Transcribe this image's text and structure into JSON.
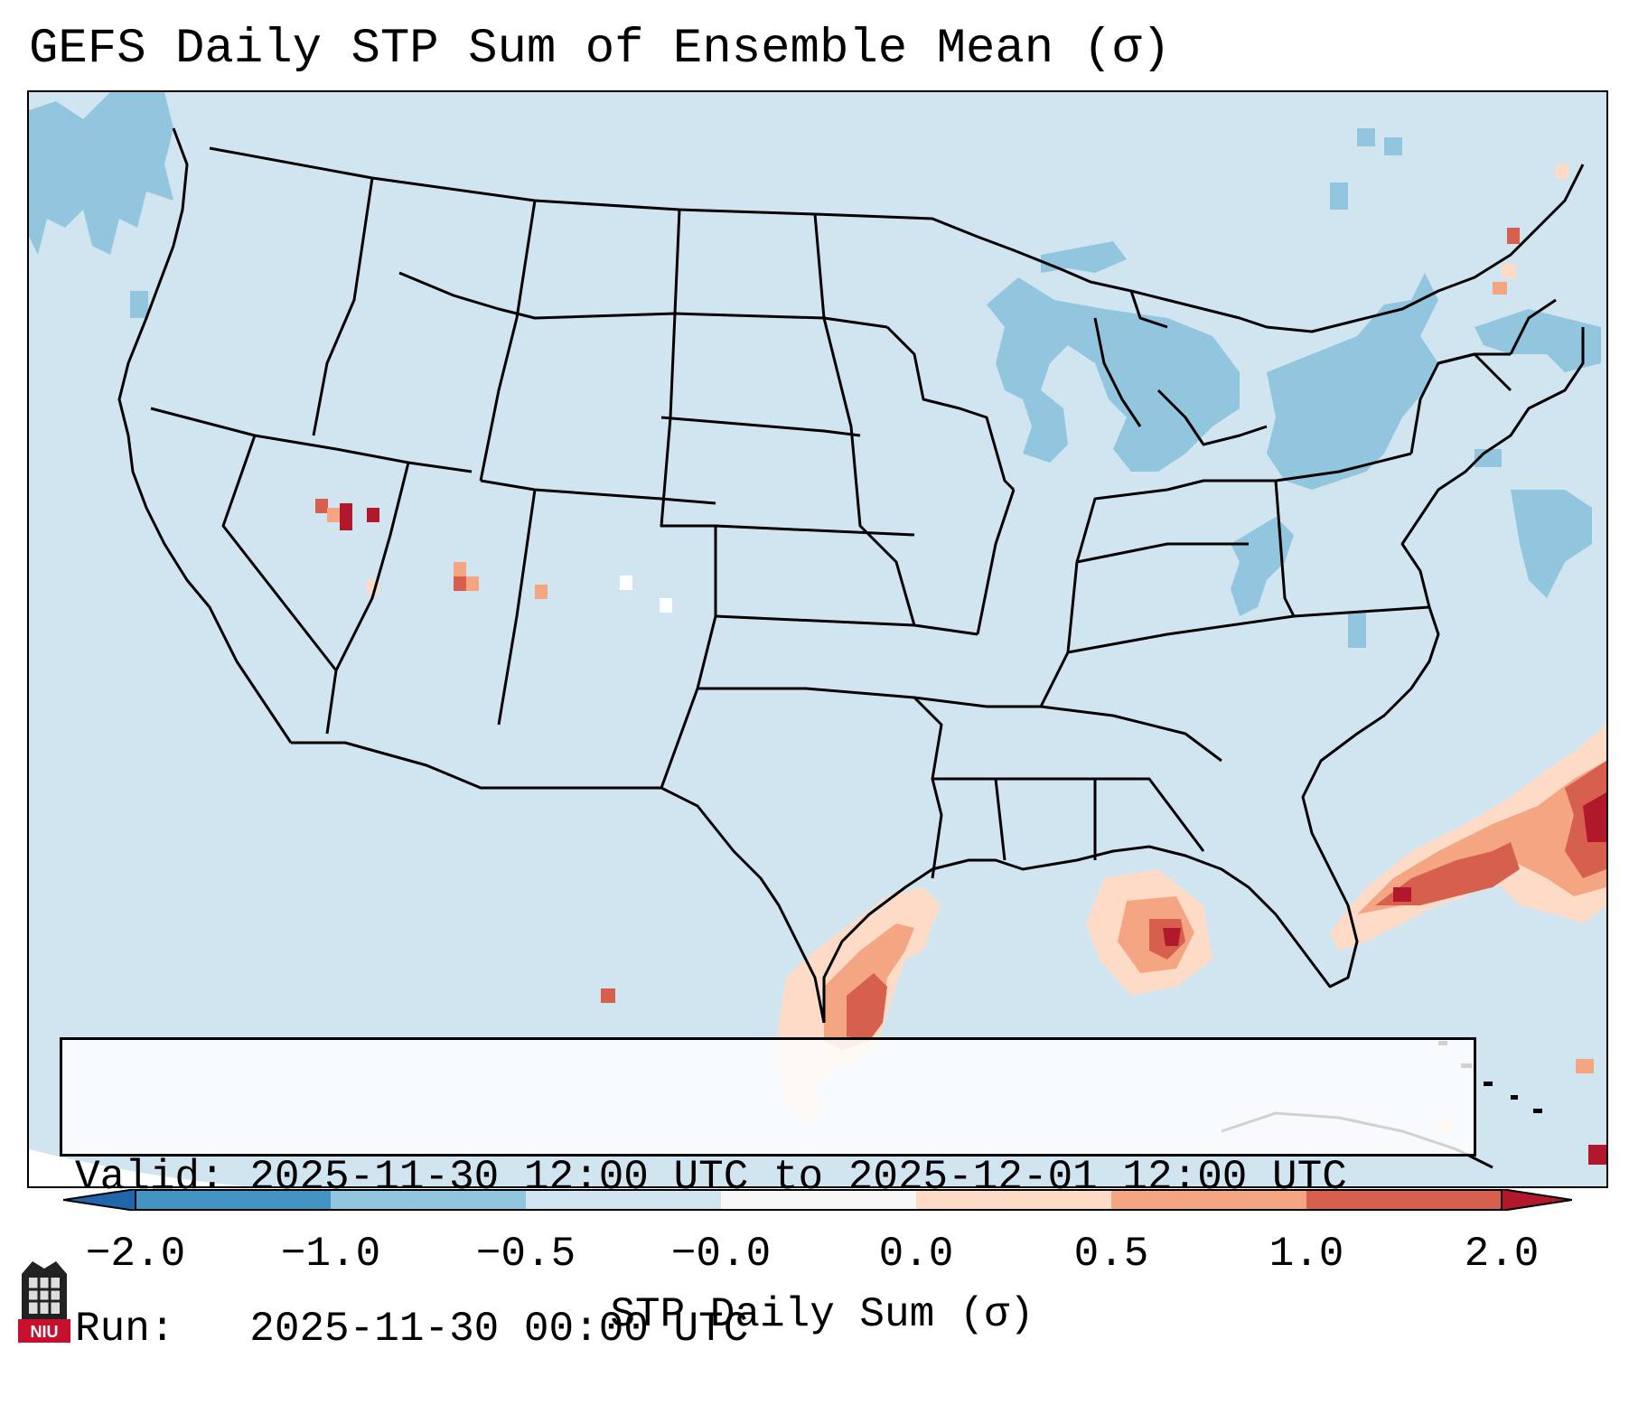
{
  "title": "GEFS Daily STP Sum of Ensemble Mean (σ)",
  "info": {
    "valid_line": "Valid: 2025-11-30 12:00 UTC to 2025-12-01 12:00 UTC",
    "run_line": "Run:   2025-11-30 00:00 UTC"
  },
  "colorbar": {
    "label": "STP Daily Sum (σ)",
    "ticks": [
      "−2.0",
      "−1.0",
      "−0.5",
      "−0.0",
      "0.0",
      "0.5",
      "1.0",
      "2.0"
    ],
    "colors": {
      "under": "#2166ac",
      "bin_neg2_neg1": "#4393c3",
      "bin_neg1_neg05": "#92c5de",
      "bin_neg05_0": "#d1e5f0",
      "bin_0": "#f7f7f7",
      "bin_0_05": "#fddbc7",
      "bin_05_1": "#f4a582",
      "bin_1_2": "#d6604d",
      "over": "#b2182b"
    }
  },
  "logo": {
    "text": "NIU"
  },
  "map": {
    "background_color": "#d1e5f0",
    "outline_color": "#000000"
  }
}
